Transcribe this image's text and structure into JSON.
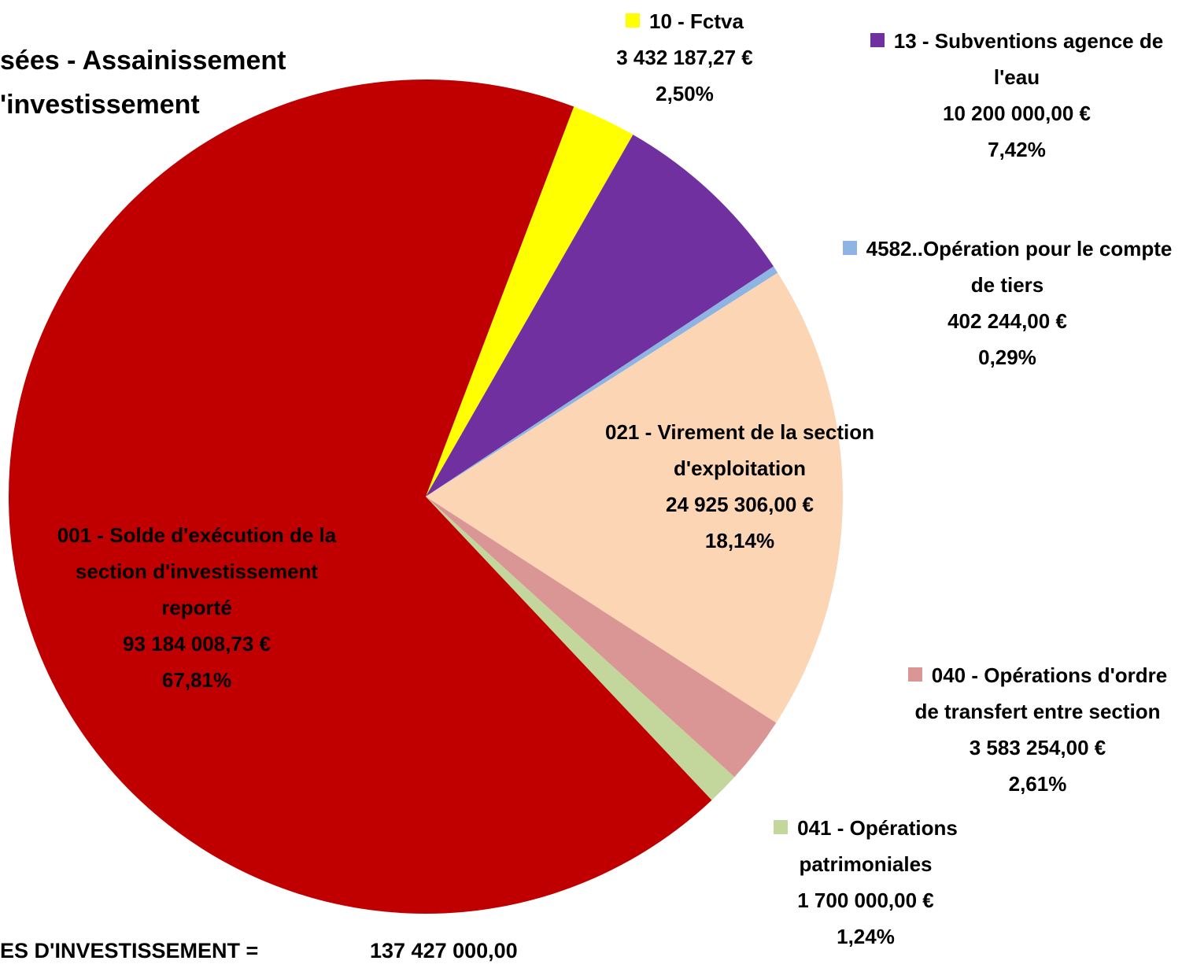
{
  "chart_data": {
    "type": "pie",
    "title_lines": [
      "sées - Assainissement",
      "'investissement"
    ],
    "categories": [
      "10 - Fctva",
      "13 - Subventions agence de l'eau",
      "4582..Opération pour le compte de tiers",
      "021 - Virement de la section d'exploitation",
      "040 - Opérations d'ordre de transfert entre section",
      "041 - Opérations patrimoniales",
      "001 - Solde d'exécution de la section d'investissement reporté"
    ],
    "values": [
      2.5,
      7.42,
      0.29,
      18.14,
      2.61,
      1.24,
      67.81
    ],
    "value_labels": [
      "2,50%",
      "7,42%",
      "0,29%",
      "18,14%",
      "2,61%",
      "1,24%",
      "67,81%"
    ],
    "amounts": [
      "3 432 187,27 €",
      "10 200 000,00 €",
      "402 244,00 €",
      "24 925 306,00 €",
      "3 583 254,00 €",
      "1 700 000,00 €",
      "93 184 008,73 €"
    ],
    "colors": [
      "#ffff00",
      "#7030a0",
      "#8db4e2",
      "#fcd5b5",
      "#d99694",
      "#c3d69b",
      "#c00000"
    ],
    "footer": {
      "label": "ES D'INVESTISSEMENT  =",
      "total": "137 427 000,00"
    }
  }
}
